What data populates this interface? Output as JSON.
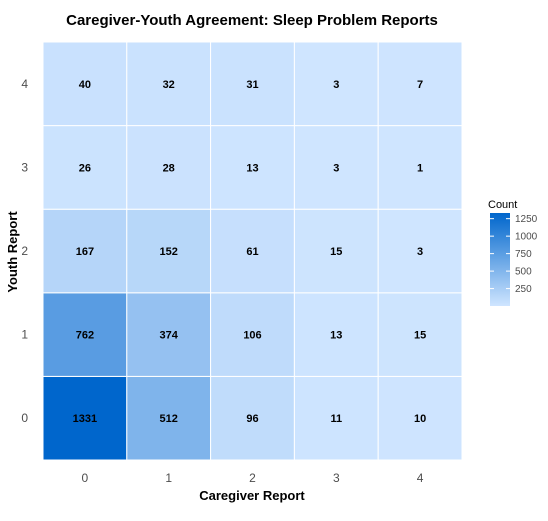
{
  "chart_data": {
    "type": "heatmap",
    "title": "Caregiver-Youth Agreement: Sleep Problem Reports",
    "xlabel": "Caregiver Report",
    "ylabel": "Youth Report",
    "x_categories": [
      "0",
      "1",
      "2",
      "3",
      "4"
    ],
    "y_categories": [
      "0",
      "1",
      "2",
      "3",
      "4"
    ],
    "values": [
      [
        1331,
        512,
        96,
        11,
        10
      ],
      [
        762,
        374,
        106,
        13,
        15
      ],
      [
        167,
        152,
        61,
        15,
        3
      ],
      [
        26,
        28,
        13,
        3,
        1
      ],
      [
        40,
        32,
        31,
        3,
        7
      ]
    ],
    "legend": {
      "title": "Count",
      "ticks": [
        "250",
        "500",
        "750",
        "1000",
        "1250"
      ],
      "position": "right"
    },
    "colors": {
      "low": "#cfe5ff",
      "high": "#0066cc",
      "grid": "#ffffff"
    }
  }
}
